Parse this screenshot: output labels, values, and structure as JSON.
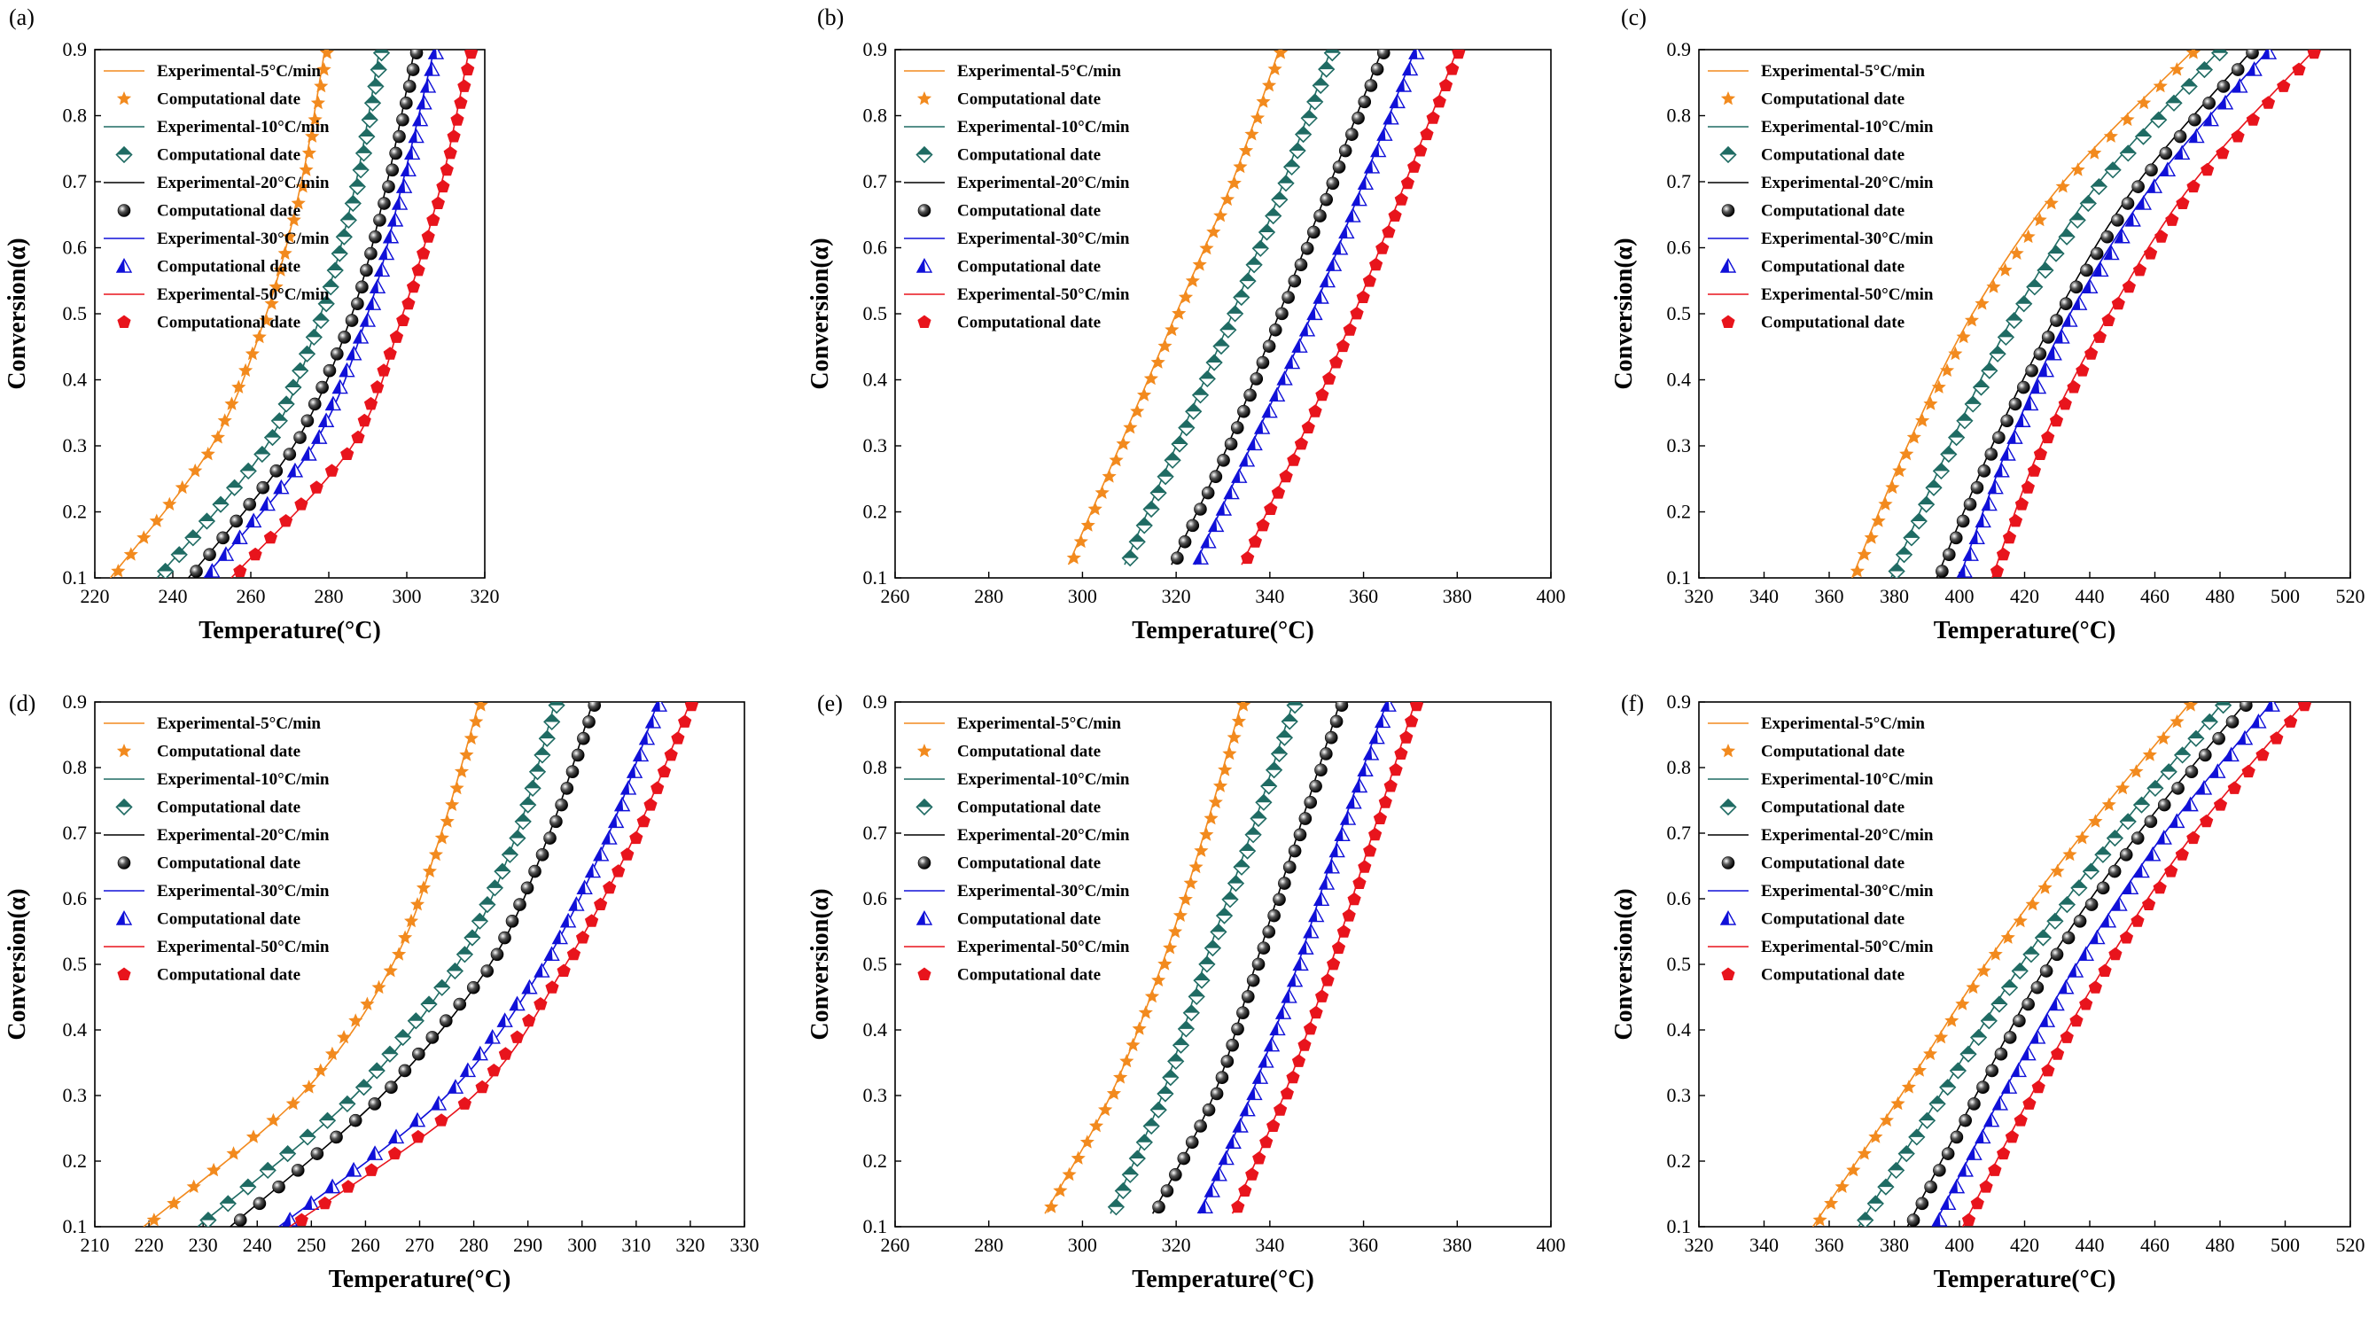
{
  "figure": {
    "colors": {
      "s5": "#f28a1e",
      "s10": "#1f6b63",
      "s20": "#000000",
      "s30": "#1010d8",
      "s50": "#e8141c",
      "axis": "#000000",
      "background": "#ffffff"
    },
    "legend": [
      {
        "label": "Experimental-5°C/min",
        "kind": "line",
        "series": "s5"
      },
      {
        "label": "Computational date",
        "kind": "marker",
        "series": "s5",
        "marker": "star"
      },
      {
        "label": "Experimental-10°C/min",
        "kind": "line",
        "series": "s10"
      },
      {
        "label": "Computational date",
        "kind": "marker",
        "series": "s10",
        "marker": "diamond"
      },
      {
        "label": "Experimental-20°C/min",
        "kind": "line",
        "series": "s20"
      },
      {
        "label": "Computational date",
        "kind": "marker",
        "series": "s20",
        "marker": "sphere"
      },
      {
        "label": "Experimental-30°C/min",
        "kind": "line",
        "series": "s30"
      },
      {
        "label": "Computational date",
        "kind": "marker",
        "series": "s30",
        "marker": "triangle"
      },
      {
        "label": "Experimental-50°C/min",
        "kind": "line",
        "series": "s50"
      },
      {
        "label": "Computational date",
        "kind": "marker",
        "series": "s50",
        "marker": "pentagon"
      }
    ]
  },
  "chart_data": [
    {
      "type": "line",
      "panel": "(a)",
      "xlabel": "Temperature(°C)",
      "ylabel": "Conversion(α)",
      "xlim": [
        220,
        320
      ],
      "xticks": [
        220,
        240,
        260,
        280,
        300,
        320
      ],
      "ylim": [
        0.1,
        0.9
      ],
      "yticks": [
        0.1,
        0.2,
        0.3,
        0.4,
        0.5,
        0.6,
        0.7,
        0.8,
        0.9
      ],
      "series": [
        {
          "name": "Experimental-5°C/min",
          "key": "s5",
          "x": [
            224,
            250,
            264,
            273,
            279
          ],
          "y": [
            0.1,
            0.3,
            0.5,
            0.7,
            0.9
          ]
        },
        {
          "name": "Experimental-10°C/min",
          "key": "s10",
          "x": [
            236,
            264,
            278,
            287,
            293
          ],
          "y": [
            0.1,
            0.3,
            0.5,
            0.7,
            0.9
          ]
        },
        {
          "name": "Experimental-20°C/min",
          "key": "s20",
          "x": [
            244,
            271,
            286,
            295,
            302
          ],
          "y": [
            0.1,
            0.3,
            0.5,
            0.7,
            0.9
          ]
        },
        {
          "name": "Experimental-30°C/min",
          "key": "s30",
          "x": [
            248,
            276,
            290,
            299,
            307
          ],
          "y": [
            0.1,
            0.3,
            0.5,
            0.7,
            0.9
          ]
        },
        {
          "name": "Experimental-50°C/min",
          "key": "s50",
          "x": [
            255,
            286,
            299,
            309,
            316
          ],
          "y": [
            0.1,
            0.3,
            0.5,
            0.7,
            0.9
          ]
        }
      ]
    },
    {
      "type": "line",
      "panel": "(b)",
      "xlabel": "Temperature(°C)",
      "ylabel": "Conversion(α)",
      "xlim": [
        260,
        400
      ],
      "xticks": [
        260,
        280,
        300,
        320,
        340,
        360,
        380,
        400
      ],
      "ylim": [
        0.1,
        0.9
      ],
      "yticks": [
        0.1,
        0.2,
        0.3,
        0.4,
        0.5,
        0.6,
        0.7,
        0.8,
        0.9
      ],
      "series": [
        {
          "name": "Experimental-5°C/min",
          "key": "s5",
          "x": [
            297,
            308,
            320,
            332,
            342
          ],
          "y": [
            0.12,
            0.3,
            0.5,
            0.7,
            0.9
          ]
        },
        {
          "name": "Experimental-10°C/min",
          "key": "s10",
          "x": [
            309,
            320,
            332,
            343,
            353
          ],
          "y": [
            0.12,
            0.3,
            0.5,
            0.7,
            0.9
          ]
        },
        {
          "name": "Experimental-20°C/min",
          "key": "s20",
          "x": [
            319,
            331,
            342,
            353,
            364
          ],
          "y": [
            0.12,
            0.3,
            0.5,
            0.7,
            0.9
          ]
        },
        {
          "name": "Experimental-30°C/min",
          "key": "s30",
          "x": [
            324,
            336,
            349,
            360,
            371
          ],
          "y": [
            0.12,
            0.3,
            0.5,
            0.7,
            0.9
          ]
        },
        {
          "name": "Experimental-50°C/min",
          "key": "s50",
          "x": [
            334,
            346,
            358,
            369,
            380
          ],
          "y": [
            0.12,
            0.3,
            0.5,
            0.7,
            0.9
          ]
        }
      ]
    },
    {
      "type": "line",
      "panel": "(c)",
      "xlabel": "Temperature(°C)",
      "ylabel": "Conversion(α)",
      "xlim": [
        320,
        520
      ],
      "xticks": [
        320,
        340,
        360,
        380,
        400,
        420,
        440,
        460,
        480,
        500,
        520
      ],
      "ylim": [
        0.1,
        0.9
      ],
      "yticks": [
        0.1,
        0.2,
        0.3,
        0.4,
        0.5,
        0.6,
        0.7,
        0.8,
        0.9
      ],
      "series": [
        {
          "name": "Experimental-5°C/min",
          "key": "s5",
          "x": [
            367,
            384,
            404,
            432,
            472
          ],
          "y": [
            0.1,
            0.3,
            0.5,
            0.7,
            0.9
          ]
        },
        {
          "name": "Experimental-10°C/min",
          "key": "s10",
          "x": [
            379,
            397,
            417,
            443,
            480
          ],
          "y": [
            0.1,
            0.3,
            0.5,
            0.7,
            0.9
          ]
        },
        {
          "name": "Experimental-20°C/min",
          "key": "s20",
          "x": [
            393,
            410,
            430,
            455,
            490
          ],
          "y": [
            0.1,
            0.3,
            0.5,
            0.7,
            0.9
          ]
        },
        {
          "name": "Experimental-30°C/min",
          "key": "s30",
          "x": [
            400,
            415,
            434,
            460,
            495
          ],
          "y": [
            0.1,
            0.3,
            0.5,
            0.7,
            0.9
          ]
        },
        {
          "name": "Experimental-50°C/min",
          "key": "s50",
          "x": [
            410,
            425,
            446,
            472,
            509
          ],
          "y": [
            0.1,
            0.3,
            0.5,
            0.7,
            0.9
          ]
        }
      ]
    },
    {
      "type": "line",
      "panel": "(d)",
      "xlabel": "Temperature(°C)",
      "ylabel": "Conversion(α)",
      "xlim": [
        210,
        330
      ],
      "xticks": [
        210,
        220,
        230,
        240,
        250,
        260,
        270,
        280,
        290,
        300,
        310,
        320,
        330
      ],
      "ylim": [
        0.1,
        0.9
      ],
      "yticks": [
        0.1,
        0.2,
        0.3,
        0.4,
        0.5,
        0.6,
        0.7,
        0.8,
        0.9
      ],
      "series": [
        {
          "name": "Experimental-5°C/min",
          "key": "s5",
          "x": [
            219,
            248,
            265,
            274,
            281
          ],
          "y": [
            0.1,
            0.3,
            0.5,
            0.7,
            0.9
          ]
        },
        {
          "name": "Experimental-10°C/min",
          "key": "s10",
          "x": [
            229,
            258,
            277,
            288,
            295
          ],
          "y": [
            0.1,
            0.3,
            0.5,
            0.7,
            0.9
          ]
        },
        {
          "name": "Experimental-20°C/min",
          "key": "s20",
          "x": [
            235,
            263,
            283,
            294,
            302
          ],
          "y": [
            0.1,
            0.3,
            0.5,
            0.7,
            0.9
          ]
        },
        {
          "name": "Experimental-30°C/min",
          "key": "s30",
          "x": [
            244,
            275,
            293,
            305,
            314
          ],
          "y": [
            0.1,
            0.3,
            0.5,
            0.7,
            0.9
          ]
        },
        {
          "name": "Experimental-50°C/min",
          "key": "s50",
          "x": [
            246,
            280,
            297,
            310,
            320
          ],
          "y": [
            0.1,
            0.3,
            0.5,
            0.7,
            0.9
          ]
        }
      ]
    },
    {
      "type": "line",
      "panel": "(e)",
      "xlabel": "Temperature(°C)",
      "ylabel": "Conversion(α)",
      "xlim": [
        260,
        400
      ],
      "xticks": [
        260,
        280,
        300,
        320,
        340,
        360,
        380,
        400
      ],
      "ylim": [
        0.1,
        0.9
      ],
      "yticks": [
        0.1,
        0.2,
        0.3,
        0.4,
        0.5,
        0.6,
        0.7,
        0.8,
        0.9
      ],
      "series": [
        {
          "name": "Experimental-5°C/min",
          "key": "s5",
          "x": [
            292,
            306,
            317,
            326,
            334
          ],
          "y": [
            0.12,
            0.3,
            0.5,
            0.7,
            0.9
          ]
        },
        {
          "name": "Experimental-10°C/min",
          "key": "s10",
          "x": [
            306,
            317,
            326,
            336,
            345
          ],
          "y": [
            0.12,
            0.3,
            0.5,
            0.7,
            0.9
          ]
        },
        {
          "name": "Experimental-20°C/min",
          "key": "s20",
          "x": [
            315,
            328,
            337,
            346,
            355
          ],
          "y": [
            0.12,
            0.3,
            0.5,
            0.7,
            0.9
          ]
        },
        {
          "name": "Experimental-30°C/min",
          "key": "s30",
          "x": [
            325,
            336,
            346,
            355,
            365
          ],
          "y": [
            0.12,
            0.3,
            0.5,
            0.7,
            0.9
          ]
        },
        {
          "name": "Experimental-50°C/min",
          "key": "s50",
          "x": [
            332,
            343,
            353,
            362,
            371
          ],
          "y": [
            0.12,
            0.3,
            0.5,
            0.7,
            0.9
          ]
        }
      ]
    },
    {
      "type": "line",
      "panel": "(f)",
      "xlabel": "Temperature(°C)",
      "ylabel": "Conversion(α)",
      "xlim": [
        320,
        520
      ],
      "xticks": [
        320,
        340,
        360,
        380,
        400,
        420,
        440,
        460,
        480,
        500,
        520
      ],
      "ylim": [
        0.1,
        0.9
      ],
      "yticks": [
        0.1,
        0.2,
        0.3,
        0.4,
        0.5,
        0.6,
        0.7,
        0.8,
        0.9
      ],
      "series": [
        {
          "name": "Experimental-5°C/min",
          "key": "s5",
          "x": [
            355,
            382,
            408,
            438,
            471
          ],
          "y": [
            0.1,
            0.3,
            0.5,
            0.7,
            0.9
          ]
        },
        {
          "name": "Experimental-10°C/min",
          "key": "s10",
          "x": [
            369,
            394,
            419,
            448,
            481
          ],
          "y": [
            0.1,
            0.3,
            0.5,
            0.7,
            0.9
          ]
        },
        {
          "name": "Experimental-20°C/min",
          "key": "s20",
          "x": [
            384,
            405,
            427,
            455,
            488
          ],
          "y": [
            0.1,
            0.3,
            0.5,
            0.7,
            0.9
          ]
        },
        {
          "name": "Experimental-30°C/min",
          "key": "s30",
          "x": [
            392,
            413,
            436,
            463,
            496
          ],
          "y": [
            0.1,
            0.3,
            0.5,
            0.7,
            0.9
          ]
        },
        {
          "name": "Experimental-50°C/min",
          "key": "s50",
          "x": [
            401,
            422,
            445,
            472,
            506
          ],
          "y": [
            0.1,
            0.3,
            0.5,
            0.7,
            0.9
          ]
        }
      ]
    }
  ]
}
